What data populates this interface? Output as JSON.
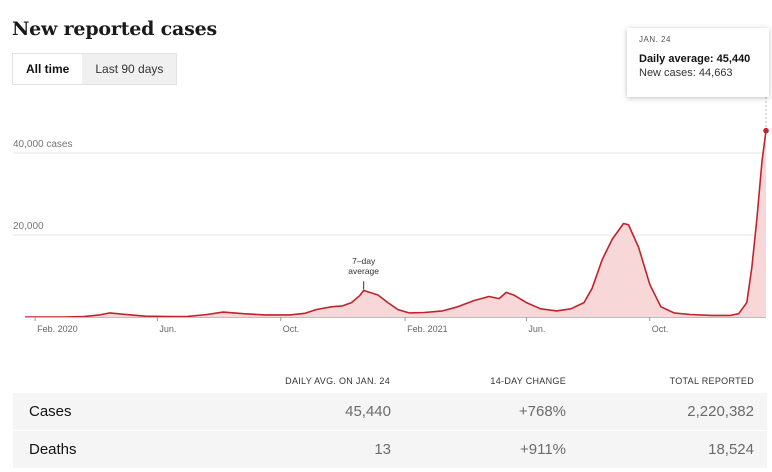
{
  "header": {
    "title": "New reported cases"
  },
  "toggle": {
    "all_time": "All time",
    "last_90": "Last 90 days"
  },
  "tooltip": {
    "date": "JAN. 24",
    "daily_average": "Daily average: 45,440",
    "new_cases": "New cases: 44,663"
  },
  "colors": {
    "line": "#c0232c",
    "fill": "#f7d7d8",
    "grid": "#e6e6e6"
  },
  "chart_data": {
    "type": "area",
    "title": "New reported cases",
    "ylim": [
      0,
      50000
    ],
    "y_ticks": [
      {
        "value": 40000,
        "label": "40,000 cases"
      },
      {
        "value": 20000,
        "label": "20,000"
      }
    ],
    "x_ticks": [
      {
        "date": "2020-02-01",
        "label": "Feb. 2020"
      },
      {
        "date": "2020-06-01",
        "label": "Jun."
      },
      {
        "date": "2020-10-01",
        "label": "Oct."
      },
      {
        "date": "2021-02-01",
        "label": "Feb. 2021"
      },
      {
        "date": "2021-06-01",
        "label": "Jun."
      },
      {
        "date": "2021-10-01",
        "label": "Oct."
      }
    ],
    "annotation": {
      "lines": [
        "7–day",
        "average"
      ],
      "date": "2020-12-22",
      "value": 6500
    },
    "series": [
      {
        "name": "7-day average",
        "points": [
          [
            "2020-01-22",
            0
          ],
          [
            "2020-03-01",
            0
          ],
          [
            "2020-03-20",
            100
          ],
          [
            "2020-04-05",
            500
          ],
          [
            "2020-04-15",
            1000
          ],
          [
            "2020-05-01",
            600
          ],
          [
            "2020-05-20",
            200
          ],
          [
            "2020-06-15",
            100
          ],
          [
            "2020-07-01",
            150
          ],
          [
            "2020-07-20",
            600
          ],
          [
            "2020-08-05",
            1200
          ],
          [
            "2020-08-25",
            800
          ],
          [
            "2020-09-15",
            500
          ],
          [
            "2020-10-10",
            500
          ],
          [
            "2020-10-25",
            900
          ],
          [
            "2020-11-05",
            1800
          ],
          [
            "2020-11-20",
            2500
          ],
          [
            "2020-12-01",
            2700
          ],
          [
            "2020-12-10",
            3500
          ],
          [
            "2020-12-18",
            5200
          ],
          [
            "2020-12-22",
            6500
          ],
          [
            "2020-12-28",
            6000
          ],
          [
            "2021-01-05",
            5400
          ],
          [
            "2021-01-15",
            3500
          ],
          [
            "2021-01-25",
            1800
          ],
          [
            "2021-02-05",
            1000
          ],
          [
            "2021-02-20",
            1100
          ],
          [
            "2021-03-10",
            1500
          ],
          [
            "2021-03-25",
            2500
          ],
          [
            "2021-04-10",
            4000
          ],
          [
            "2021-04-25",
            5000
          ],
          [
            "2021-05-05",
            4500
          ],
          [
            "2021-05-12",
            6000
          ],
          [
            "2021-05-20",
            5300
          ],
          [
            "2021-06-01",
            3500
          ],
          [
            "2021-06-15",
            2000
          ],
          [
            "2021-07-01",
            1500
          ],
          [
            "2021-07-15",
            2000
          ],
          [
            "2021-07-28",
            3500
          ],
          [
            "2021-08-05",
            7000
          ],
          [
            "2021-08-15",
            14000
          ],
          [
            "2021-08-25",
            19000
          ],
          [
            "2021-09-05",
            22800
          ],
          [
            "2021-09-10",
            22500
          ],
          [
            "2021-09-20",
            17000
          ],
          [
            "2021-10-01",
            8000
          ],
          [
            "2021-10-12",
            2500
          ],
          [
            "2021-10-25",
            1000
          ],
          [
            "2021-11-10",
            600
          ],
          [
            "2021-12-01",
            400
          ],
          [
            "2021-12-20",
            400
          ],
          [
            "2021-12-28",
            800
          ],
          [
            "2022-01-05",
            3500
          ],
          [
            "2022-01-10",
            12000
          ],
          [
            "2022-01-15",
            24000
          ],
          [
            "2022-01-20",
            38000
          ],
          [
            "2022-01-24",
            45440
          ]
        ]
      }
    ]
  },
  "stats": {
    "headers": {
      "daily_avg": "DAILY AVG. ON JAN. 24",
      "change": "14-DAY CHANGE",
      "total": "TOTAL REPORTED"
    },
    "rows": [
      {
        "label": "Cases",
        "daily_avg": "45,440",
        "change": "+768%",
        "total": "2,220,382"
      },
      {
        "label": "Deaths",
        "daily_avg": "13",
        "change": "+911%",
        "total": "18,524"
      }
    ]
  }
}
